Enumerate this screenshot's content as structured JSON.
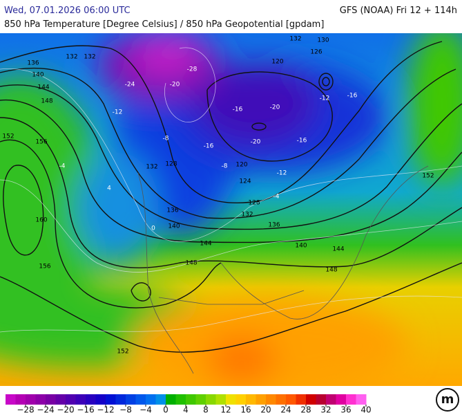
{
  "header": {
    "datetime": "Wed, 07.01.2026 06:00 UTC",
    "model": "GFS (NOAA) Fri 12 + 114h",
    "parameter": "850 hPa Temperature [Degree Celsius] / 850 hPa Geopotential [gpdam]"
  },
  "map": {
    "contour_labels": {
      "geopotential": [
        132,
        136,
        140,
        144,
        148,
        152,
        156,
        160,
        156,
        152,
        132,
        132,
        128,
        136,
        140,
        144,
        148,
        120,
        124,
        128,
        132,
        136,
        140,
        144,
        148,
        152,
        120,
        126,
        130,
        132
      ],
      "temperature": [
        -28,
        -20,
        -16,
        -12,
        -16,
        -20,
        -16,
        -12,
        -8,
        -4,
        0,
        4,
        -12,
        -20,
        -24,
        -16,
        -8,
        -4
      ]
    }
  },
  "colorbar": {
    "lim": [
      -32,
      40
    ],
    "colors": [
      "#c808c8",
      "#b400b4",
      "#a000ac",
      "#8c00a8",
      "#7800a4",
      "#6400a8",
      "#5000b0",
      "#3c00b8",
      "#2800c0",
      "#1400c8",
      "#0010d4",
      "#0028dc",
      "#0040e4",
      "#0058ec",
      "#0070f0",
      "#0090e8",
      "#00b000",
      "#20c000",
      "#40c800",
      "#60d000",
      "#88d800",
      "#b0e000",
      "#f0e000",
      "#ffd000",
      "#ffb800",
      "#ffa000",
      "#ff8800",
      "#ff7000",
      "#ff5800",
      "#f03000",
      "#d00000",
      "#b80030",
      "#c00070",
      "#e000a0",
      "#ff30d0",
      "#ff60f0"
    ],
    "ticks": [
      {
        "value": -28,
        "label": "−28"
      },
      {
        "value": -24,
        "label": "−24"
      },
      {
        "value": -20,
        "label": "−20"
      },
      {
        "value": -16,
        "label": "−16"
      },
      {
        "value": -12,
        "label": "−12"
      },
      {
        "value": -8,
        "label": "−8"
      },
      {
        "value": -4,
        "label": "−4"
      },
      0,
      4,
      8,
      12,
      16,
      20,
      24,
      28,
      32,
      36,
      40
    ]
  }
}
